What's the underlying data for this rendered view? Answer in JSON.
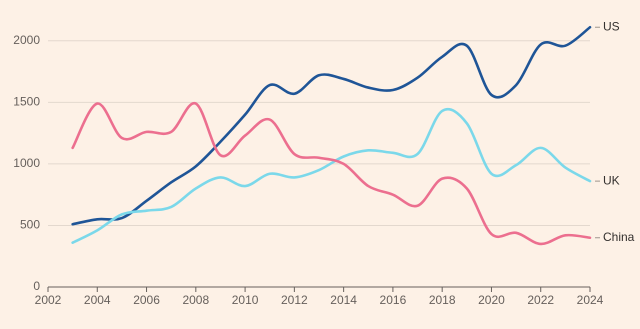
{
  "chart_data": {
    "type": "line",
    "x": [
      2003,
      2004,
      2005,
      2006,
      2007,
      2008,
      2009,
      2010,
      2011,
      2012,
      2013,
      2014,
      2015,
      2016,
      2017,
      2018,
      2019,
      2020,
      2021,
      2022,
      2023,
      2024
    ],
    "series": [
      {
        "name": "US",
        "color": "#1f5597",
        "values": [
          510,
          550,
          560,
          700,
          850,
          980,
          1180,
          1400,
          1640,
          1570,
          1720,
          1690,
          1620,
          1600,
          1700,
          1870,
          1960,
          1560,
          1640,
          1970,
          1960,
          2110
        ]
      },
      {
        "name": "UK",
        "color": "#7bd8ea",
        "values": [
          360,
          460,
          590,
          620,
          650,
          800,
          890,
          820,
          920,
          890,
          950,
          1060,
          1110,
          1090,
          1080,
          1430,
          1330,
          920,
          990,
          1130,
          970,
          860
        ]
      },
      {
        "name": "China",
        "color": "#ec6f8f",
        "values": [
          1130,
          1490,
          1210,
          1260,
          1260,
          1490,
          1070,
          1230,
          1360,
          1080,
          1050,
          1000,
          820,
          750,
          660,
          880,
          800,
          430,
          440,
          350,
          420,
          400
        ]
      }
    ],
    "xlim": [
      2002,
      2024
    ],
    "xticks": [
      2002,
      2004,
      2006,
      2008,
      2010,
      2012,
      2014,
      2016,
      2018,
      2020,
      2022,
      2024
    ],
    "ylim": [
      0,
      2250
    ],
    "yticks": [
      0,
      500,
      1000,
      1500,
      2000
    ],
    "grid": true
  }
}
